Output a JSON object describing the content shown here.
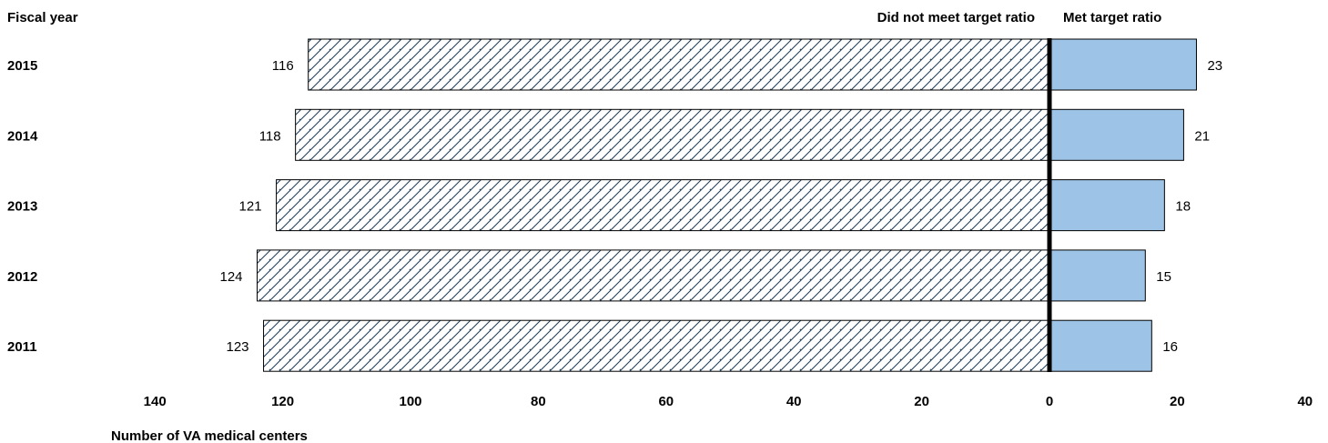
{
  "chart_data": {
    "type": "bar",
    "orientation": "horizontal-diverging",
    "y_title": "Fiscal year",
    "xlabel": "Number of VA medical centers",
    "categories": [
      "2015",
      "2014",
      "2013",
      "2012",
      "2011"
    ],
    "series": [
      {
        "name": "Did not meet target ratio",
        "values": [
          116,
          118,
          121,
          124,
          123
        ],
        "direction": "left",
        "fill": "hatched",
        "color": "#1f3b57"
      },
      {
        "name": "Met target ratio",
        "values": [
          23,
          21,
          18,
          15,
          16
        ],
        "direction": "right",
        "fill": "solid",
        "color": "#9dc3e6"
      }
    ],
    "x_ticks": [
      "140",
      "120",
      "100",
      "80",
      "60",
      "40",
      "20",
      "0",
      "20",
      "40"
    ],
    "xlim": [
      -140,
      40
    ],
    "grid": false,
    "legend": "top, headers above each side"
  }
}
